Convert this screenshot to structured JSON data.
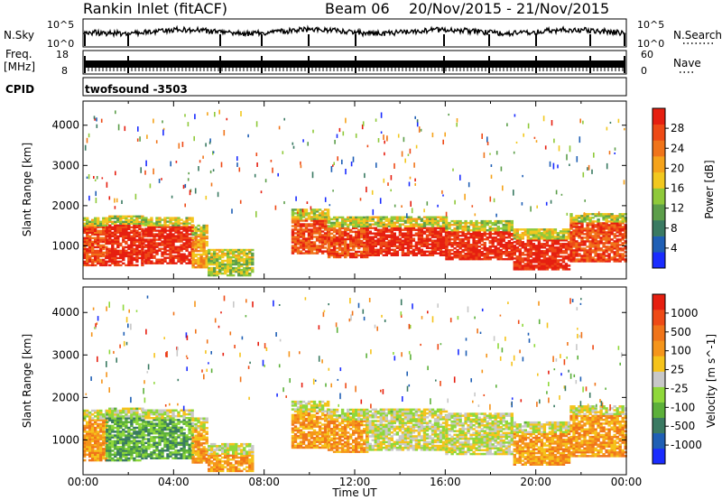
{
  "header": {
    "station": "Rankin Inlet (fitACF)",
    "beam": "Beam 06",
    "date_range": "20/Nov/2015 - 21/Nov/2015"
  },
  "side_labels": {
    "nsky": "N.Sky",
    "freq_line1": "Freq.",
    "freq_line2": "[MHz]",
    "cpid": "CPID",
    "nsearch": "N.Search",
    "nave": "Nave"
  },
  "cpid_value": "twofsound -3503",
  "strip_ticks": {
    "nsky_left": [
      "10^5",
      "10^0"
    ],
    "nsky_right": [
      "10^5",
      "10^0"
    ],
    "freq_left": [
      "18",
      "8"
    ],
    "freq_right": [
      "60",
      "0"
    ]
  },
  "chart_data": [
    {
      "type": "heatmap",
      "name": "power-panel",
      "ylabel": "Slant Range [km]",
      "yticks": [
        1000,
        2000,
        3000,
        4000
      ],
      "ylim": [
        180,
        4600
      ],
      "xlim": [
        0,
        24
      ],
      "colorbar": {
        "label": "Power [dB]",
        "ticks": [
          "4",
          "8",
          "12",
          "16",
          "20",
          "24",
          "28"
        ],
        "colors": [
          "#1a2cff",
          "#1f5fb5",
          "#3a7a62",
          "#5c9e4a",
          "#8fc93a",
          "#f2c81f",
          "#f5a31b",
          "#f0741a",
          "#ee4a16",
          "#e61f10"
        ]
      },
      "bands": [
        {
          "t0": 0.0,
          "t1": 1.0,
          "r0": 500,
          "r1": 1700,
          "level": 8
        },
        {
          "t0": 1.0,
          "t1": 2.6,
          "r0": 500,
          "r1": 1750,
          "level": 9
        },
        {
          "t0": 2.6,
          "t1": 4.8,
          "r0": 550,
          "r1": 1700,
          "level": 9
        },
        {
          "t0": 4.8,
          "t1": 5.5,
          "r0": 450,
          "r1": 1500,
          "level": 6
        },
        {
          "t0": 5.5,
          "t1": 7.5,
          "r0": 250,
          "r1": 900,
          "level": 4
        },
        {
          "t0": 9.2,
          "t1": 10.8,
          "r0": 800,
          "r1": 1900,
          "level": 8
        },
        {
          "t0": 10.8,
          "t1": 12.5,
          "r0": 700,
          "r1": 1700,
          "level": 8
        },
        {
          "t0": 12.5,
          "t1": 16.0,
          "r0": 750,
          "r1": 1700,
          "level": 9
        },
        {
          "t0": 16.0,
          "t1": 19.0,
          "r0": 650,
          "r1": 1600,
          "level": 9
        },
        {
          "t0": 19.0,
          "t1": 21.5,
          "r0": 400,
          "r1": 1400,
          "level": 9
        },
        {
          "t0": 21.5,
          "t1": 24.0,
          "r0": 600,
          "r1": 1800,
          "level": 8
        }
      ]
    },
    {
      "type": "heatmap",
      "name": "velocity-panel",
      "ylabel": "Slant Range [km]",
      "yticks": [
        1000,
        2000,
        3000,
        4000
      ],
      "ylim": [
        180,
        4600
      ],
      "xlim": [
        0,
        24
      ],
      "colorbar": {
        "label": "Velocity [m s^-1]",
        "ticks": [
          "1000",
          "500",
          "100",
          "25",
          "-25",
          "-100",
          "-500",
          "-1000"
        ],
        "colors": [
          "#1a2cff",
          "#1f5fb5",
          "#3a7a62",
          "#5cb03a",
          "#8fd83a",
          "#c8c8c8",
          "#f5c31b",
          "#f5951b",
          "#f0741a",
          "#ee4a16",
          "#e61f10"
        ]
      },
      "bands": [
        {
          "t0": 0.0,
          "t1": 1.0,
          "r0": 500,
          "r1": 1700,
          "level": 7
        },
        {
          "t0": 1.0,
          "t1": 2.6,
          "r0": 500,
          "r1": 1750,
          "level": 3
        },
        {
          "t0": 2.6,
          "t1": 4.8,
          "r0": 550,
          "r1": 1700,
          "level": 3
        },
        {
          "t0": 4.8,
          "t1": 5.5,
          "r0": 450,
          "r1": 1500,
          "level": 7
        },
        {
          "t0": 5.5,
          "t1": 7.5,
          "r0": 250,
          "r1": 900,
          "level": 7
        },
        {
          "t0": 9.2,
          "t1": 10.8,
          "r0": 800,
          "r1": 1900,
          "level": 7
        },
        {
          "t0": 10.8,
          "t1": 12.5,
          "r0": 700,
          "r1": 1700,
          "level": 7
        },
        {
          "t0": 12.5,
          "t1": 16.0,
          "r0": 750,
          "r1": 1700,
          "level": 5
        },
        {
          "t0": 16.0,
          "t1": 19.0,
          "r0": 650,
          "r1": 1600,
          "level": 5
        },
        {
          "t0": 19.0,
          "t1": 21.5,
          "r0": 400,
          "r1": 1400,
          "level": 7
        },
        {
          "t0": 21.5,
          "t1": 24.0,
          "r0": 600,
          "r1": 1800,
          "level": 7
        }
      ]
    }
  ],
  "xaxis": {
    "label": "Time UT",
    "ticks": [
      "00:00",
      "04:00",
      "08:00",
      "12:00",
      "16:00",
      "20:00",
      "00:00"
    ]
  }
}
